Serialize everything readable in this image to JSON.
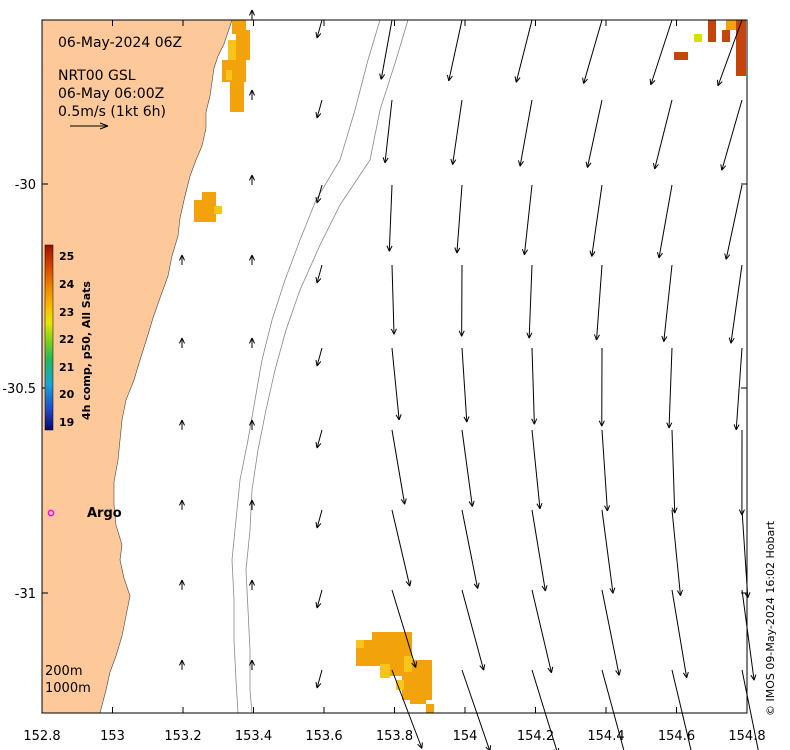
{
  "header": {
    "date": "06-May-2024 06Z",
    "product": "NRT00 GSL",
    "valid": "06-May 06:00Z",
    "scale_label": "0.5m/s (1kt 6h)"
  },
  "colorbar": {
    "label": "4h comp, p50, All Sats",
    "ticks": [
      "25",
      "24",
      "23",
      "22",
      "21",
      "20",
      "19"
    ],
    "min": 19,
    "max": 25.5,
    "colors": [
      "#08086e",
      "#1f4fd0",
      "#17a6d8",
      "#1fb860",
      "#7ad21c",
      "#e6e600",
      "#f5c000",
      "#f08c00",
      "#d84800",
      "#a01000"
    ]
  },
  "axes": {
    "xticks": [
      "152.8",
      "153",
      "153.2",
      "153.4",
      "153.6",
      "153.8",
      "154",
      "154.2",
      "154.4",
      "154.6",
      "154.8"
    ],
    "yticks": [
      "-30",
      "-30.5",
      "-31"
    ],
    "xlim": [
      152.8,
      154.8
    ],
    "ylim": [
      -31.3,
      -29.6
    ]
  },
  "labels": {
    "argo": "Argo",
    "contour_200": "200m",
    "contour_1000": "1000m"
  },
  "credit": "© IMOS 09-May-2024 16:02 Hobart",
  "colors": {
    "land": "#fdc99a",
    "argo": "#ff00ff",
    "sst_orange": "#f2a20a",
    "sst_light": "#f7c51a",
    "sst_red": "#c4440c"
  }
}
